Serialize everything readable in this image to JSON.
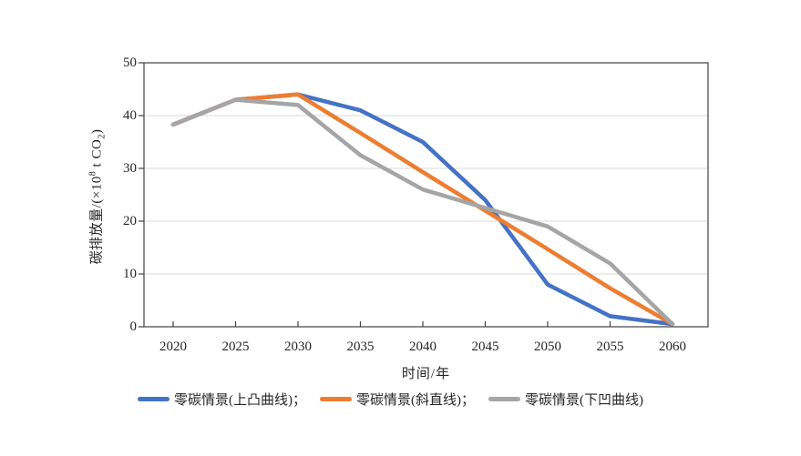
{
  "chart_data": {
    "type": "line",
    "title": "",
    "xlabel": "时间/年",
    "ylabel": "碳排放量/(×10⁸ t CO₂)",
    "ylabel_parts": {
      "prefix": "碳排放量/(×10",
      "sup": "8",
      "mid": " t CO",
      "sub": "2",
      "suffix": ")"
    },
    "x": [
      2020,
      2025,
      2030,
      2035,
      2040,
      2045,
      2050,
      2055,
      2060
    ],
    "yticks": [
      0,
      10,
      20,
      30,
      40,
      50
    ],
    "ylim": [
      0,
      50
    ],
    "grid": "horizontal",
    "legend_position": "bottom",
    "series": [
      {
        "name": "零碳情景(上凸曲线)",
        "legend_label": "零碳情景(上凸曲线)；",
        "color": "#4472C4",
        "values": [
          38.3,
          43,
          44,
          41,
          35,
          24,
          8,
          2,
          0.5
        ]
      },
      {
        "name": "零碳情景(斜直线)",
        "legend_label": "零碳情景(斜直线)；",
        "color": "#ED7D31",
        "values": [
          38.3,
          43,
          44,
          36.7,
          29.3,
          22,
          14.7,
          7.3,
          0.5
        ]
      },
      {
        "name": "零碳情景(下凹曲线)",
        "legend_label": "零碳情景(下凹曲线)",
        "color": "#A5A5A5",
        "values": [
          38.3,
          43,
          42,
          32.5,
          26,
          22.5,
          19,
          12,
          0.5
        ]
      }
    ],
    "colors": {
      "grid": "#D9D9D9",
      "axis": "#404040",
      "text": "#262626",
      "background": "#FFFFFF"
    }
  }
}
